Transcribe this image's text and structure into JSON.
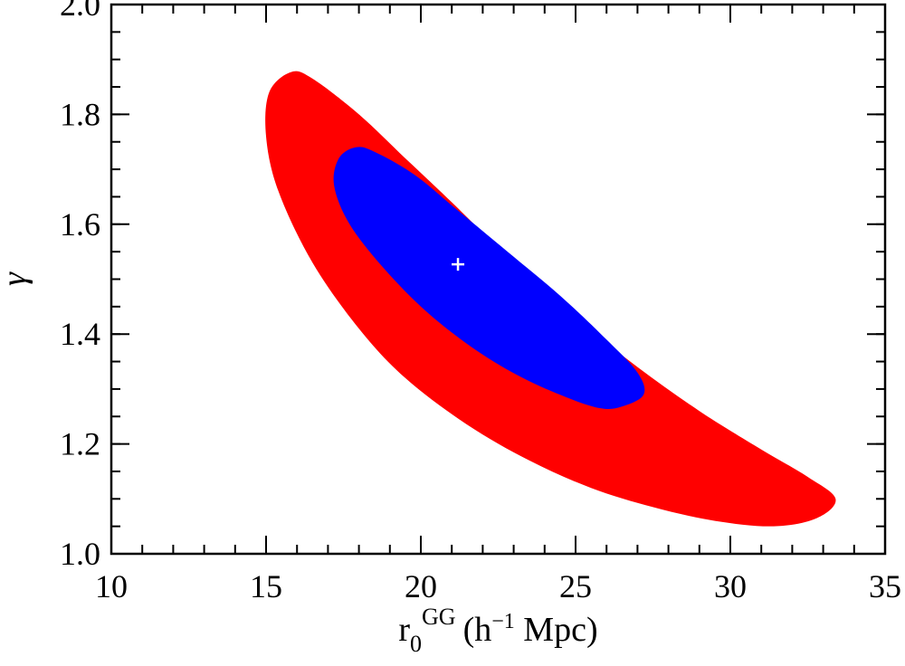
{
  "chart_data": {
    "type": "contour",
    "title": "",
    "xlabel": {
      "base": "r",
      "subscript": "0",
      "superscript": "GG",
      "unit_open": "(h",
      "unit_exp": "−1",
      "unit_close": " Mpc)"
    },
    "ylabel": "γ",
    "xlim": [
      10,
      35
    ],
    "ylim": [
      1.0,
      2.0
    ],
    "xticks": [
      10,
      15,
      20,
      25,
      30,
      35
    ],
    "xtick_labels": [
      "10",
      "15",
      "20",
      "25",
      "30",
      "35"
    ],
    "yticks": [
      1.0,
      1.2,
      1.4,
      1.6,
      1.8,
      2.0
    ],
    "ytick_labels": [
      "1.0",
      "1.2",
      "1.4",
      "1.6",
      "1.8",
      "2.0"
    ],
    "x_minor_step": 1,
    "y_minor_step": 0.05,
    "grid": false,
    "best_fit": {
      "x": 21.2,
      "y": 1.527,
      "color": "#ffffff"
    },
    "contours": [
      {
        "level": "outer",
        "color": "#ff0000",
        "boundary": [
          [
            15.8,
            1.877
          ],
          [
            16.5,
            1.865
          ],
          [
            18.0,
            1.8
          ],
          [
            19.5,
            1.72
          ],
          [
            21.0,
            1.64
          ],
          [
            23.0,
            1.53
          ],
          [
            25.0,
            1.43
          ],
          [
            27.0,
            1.34
          ],
          [
            29.0,
            1.26
          ],
          [
            31.0,
            1.19
          ],
          [
            32.5,
            1.14
          ],
          [
            33.4,
            1.1
          ],
          [
            32.8,
            1.065
          ],
          [
            31.4,
            1.05
          ],
          [
            29.5,
            1.06
          ],
          [
            27.5,
            1.085
          ],
          [
            25.5,
            1.12
          ],
          [
            23.5,
            1.17
          ],
          [
            21.5,
            1.235
          ],
          [
            19.5,
            1.32
          ],
          [
            18.0,
            1.41
          ],
          [
            16.5,
            1.53
          ],
          [
            15.4,
            1.66
          ],
          [
            15.0,
            1.76
          ],
          [
            15.1,
            1.84
          ]
        ]
      },
      {
        "level": "inner",
        "color": "#0000ff",
        "boundary": [
          [
            17.9,
            1.74
          ],
          [
            18.5,
            1.732
          ],
          [
            19.8,
            1.69
          ],
          [
            21.2,
            1.625
          ],
          [
            22.8,
            1.55
          ],
          [
            24.5,
            1.47
          ],
          [
            26.0,
            1.39
          ],
          [
            27.0,
            1.33
          ],
          [
            27.2,
            1.29
          ],
          [
            26.5,
            1.268
          ],
          [
            25.8,
            1.265
          ],
          [
            24.7,
            1.285
          ],
          [
            23.3,
            1.32
          ],
          [
            21.8,
            1.37
          ],
          [
            20.2,
            1.44
          ],
          [
            18.8,
            1.52
          ],
          [
            17.7,
            1.6
          ],
          [
            17.2,
            1.67
          ],
          [
            17.35,
            1.72
          ]
        ]
      }
    ]
  }
}
